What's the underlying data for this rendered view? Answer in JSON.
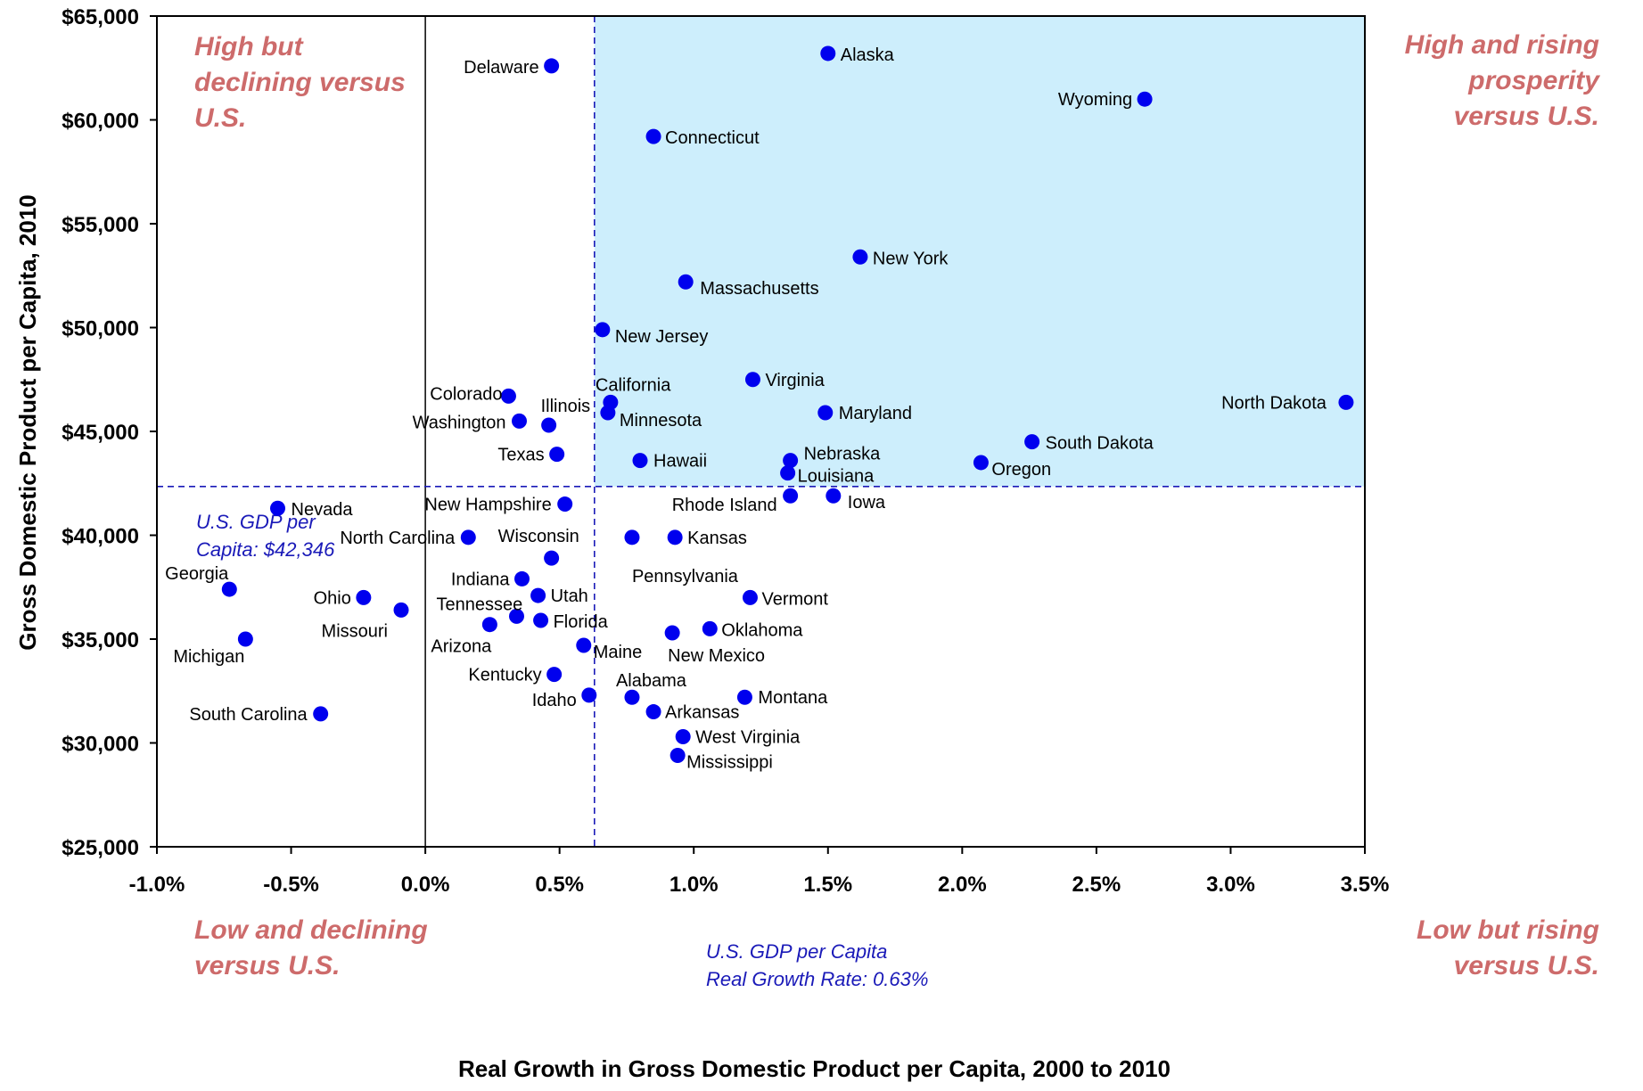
{
  "chart_data": {
    "type": "scatter",
    "xlabel": "Real Growth in Gross Domestic Product per Capita, 2000  to 2010",
    "ylabel": "Gross Domestic Product per Capita, 2010",
    "xlim": [
      -0.01,
      0.035
    ],
    "ylim": [
      25000,
      65000
    ],
    "x_ticks": [
      -0.01,
      -0.005,
      0,
      0.005,
      0.01,
      0.015,
      0.02,
      0.025,
      0.03,
      0.035
    ],
    "x_tick_labels": [
      "-1.0%",
      "-0.5%",
      "0.0%",
      "0.5%",
      "1.0%",
      "1.5%",
      "2.0%",
      "2.5%",
      "3.0%",
      "3.5%"
    ],
    "y_ticks": [
      25000,
      30000,
      35000,
      40000,
      45000,
      50000,
      55000,
      60000,
      65000
    ],
    "y_tick_labels": [
      "$25,000",
      "$30,000",
      "$35,000",
      "$40,000",
      "$45,000",
      "$50,000",
      "$55,000",
      "$60,000",
      "$65,000"
    ],
    "reference_lines": {
      "us_gdp_per_capita": 42346,
      "us_growth_rate": 0.0063,
      "us_gdp_label": [
        "U.S. GDP per",
        "Capita: $42,346"
      ],
      "us_growth_label": [
        "U.S. GDP per Capita",
        "Real Growth Rate: 0.63%"
      ]
    },
    "quadrant_labels": {
      "top_left": [
        "High but",
        "declining versus",
        "U.S."
      ],
      "top_right": [
        "High and rising",
        "prosperity",
        "versus U.S."
      ],
      "bottom_left": [
        "Low and declining",
        "versus U.S."
      ],
      "bottom_right": [
        "Low but rising",
        "versus U.S."
      ]
    },
    "colors": {
      "point": "#0000ee",
      "highlight_fill": "#cdeefc",
      "quadrant_text": "#cd6b6b",
      "reference": "#1a1ab8"
    },
    "points": [
      {
        "name": "Alaska",
        "x": 0.015,
        "y": 63200
      },
      {
        "name": "Delaware",
        "x": 0.0047,
        "y": 62600
      },
      {
        "name": "Wyoming",
        "x": 0.0268,
        "y": 61000
      },
      {
        "name": "Connecticut",
        "x": 0.0085,
        "y": 59200
      },
      {
        "name": "New York",
        "x": 0.0162,
        "y": 53400
      },
      {
        "name": "Massachusetts",
        "x": 0.0097,
        "y": 52200
      },
      {
        "name": "New Jersey",
        "x": 0.0066,
        "y": 49900
      },
      {
        "name": "Virginia",
        "x": 0.0122,
        "y": 47500
      },
      {
        "name": "Colorado",
        "x": 0.0031,
        "y": 46700
      },
      {
        "name": "California",
        "x": 0.0069,
        "y": 46400
      },
      {
        "name": "North Dakota",
        "x": 0.0343,
        "y": 46400
      },
      {
        "name": "Minnesota",
        "x": 0.0068,
        "y": 45900
      },
      {
        "name": "Maryland",
        "x": 0.0149,
        "y": 45900
      },
      {
        "name": "Washington",
        "x": 0.0035,
        "y": 45500
      },
      {
        "name": "Illinois",
        "x": 0.0046,
        "y": 45300
      },
      {
        "name": "South Dakota",
        "x": 0.0226,
        "y": 44500
      },
      {
        "name": "Texas",
        "x": 0.0049,
        "y": 43900
      },
      {
        "name": "Hawaii",
        "x": 0.008,
        "y": 43600
      },
      {
        "name": "Nebraska",
        "x": 0.0136,
        "y": 43600
      },
      {
        "name": "Oregon",
        "x": 0.0207,
        "y": 43500
      },
      {
        "name": "Louisiana",
        "x": 0.0135,
        "y": 43000
      },
      {
        "name": "Rhode Island",
        "x": 0.0136,
        "y": 41900
      },
      {
        "name": "Iowa",
        "x": 0.0152,
        "y": 41900
      },
      {
        "name": "New Hampshire",
        "x": 0.0052,
        "y": 41500
      },
      {
        "name": "Nevada",
        "x": -0.0055,
        "y": 41300
      },
      {
        "name": "North Carolina",
        "x": 0.0016,
        "y": 39900
      },
      {
        "name": "Kansas",
        "x": 0.0093,
        "y": 39900
      },
      {
        "name": "Pennsylvania",
        "x": 0.0077,
        "y": 39900
      },
      {
        "name": "Wisconsin",
        "x": 0.0047,
        "y": 38900
      },
      {
        "name": "Indiana",
        "x": 0.0036,
        "y": 37900
      },
      {
        "name": "Georgia",
        "x": -0.0073,
        "y": 37400
      },
      {
        "name": "Utah",
        "x": 0.0042,
        "y": 37100
      },
      {
        "name": "Ohio",
        "x": -0.0023,
        "y": 37000
      },
      {
        "name": "Vermont",
        "x": 0.0121,
        "y": 37000
      },
      {
        "name": "Missouri",
        "x": -0.0009,
        "y": 36400
      },
      {
        "name": "Tennessee",
        "x": 0.0034,
        "y": 36100
      },
      {
        "name": "Florida",
        "x": 0.0043,
        "y": 35900
      },
      {
        "name": "Arizona",
        "x": 0.0024,
        "y": 35700
      },
      {
        "name": "Oklahoma",
        "x": 0.0106,
        "y": 35500
      },
      {
        "name": "New Mexico",
        "x": 0.0092,
        "y": 35300
      },
      {
        "name": "Michigan",
        "x": -0.0067,
        "y": 35000
      },
      {
        "name": "Maine",
        "x": 0.0059,
        "y": 34700
      },
      {
        "name": "Kentucky",
        "x": 0.0048,
        "y": 33300
      },
      {
        "name": "Idaho",
        "x": 0.0061,
        "y": 32300
      },
      {
        "name": "Alabama",
        "x": 0.0077,
        "y": 32200
      },
      {
        "name": "Montana",
        "x": 0.0119,
        "y": 32200
      },
      {
        "name": "Arkansas",
        "x": 0.0085,
        "y": 31500
      },
      {
        "name": "South Carolina",
        "x": -0.0039,
        "y": 31400
      },
      {
        "name": "West Virginia",
        "x": 0.0096,
        "y": 30300
      },
      {
        "name": "Mississippi",
        "x": 0.0094,
        "y": 29400
      }
    ]
  }
}
